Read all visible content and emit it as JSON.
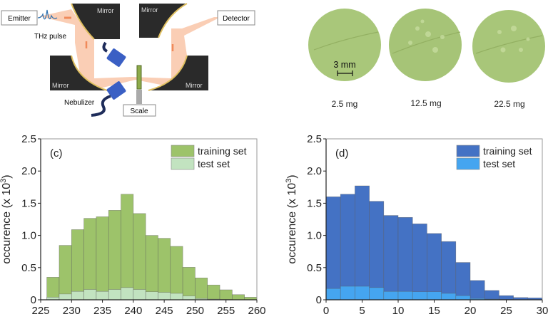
{
  "diagram": {
    "emitter": "Emitter",
    "detector": "Detector",
    "thz_pulse": "THz pulse",
    "mirror_labels": [
      "Mirror",
      "Mirror",
      "Mirror",
      "Mirror"
    ],
    "nebulizer": "Nebulizer",
    "scale": "Scale",
    "beam_color": "#f9c9ad",
    "mirror_color": "#2a2a2a",
    "nebulizer_color": "#3a5fc4"
  },
  "samples": {
    "scale_bar": "3 mm",
    "labels": [
      "2.5 mg",
      "12.5 mg",
      "22.5 mg"
    ],
    "leaf_color": "#a9c77a"
  },
  "chart_data": [
    {
      "type": "bar",
      "panel_label": "(c)",
      "ylabel": "occurence (x 10",
      "ylabel_sup": "3",
      "ylabel_close": ")",
      "xlim": [
        225,
        260
      ],
      "ylim": [
        0,
        2.5
      ],
      "xticks": [
        "225",
        "230",
        "235",
        "240",
        "245",
        "250",
        "255",
        "260"
      ],
      "yticks": [
        "0",
        "0.5",
        "1.0",
        "1.5",
        "2.0",
        "2.5"
      ],
      "bin_edges": [
        226,
        228,
        230,
        232,
        234,
        236,
        238,
        240,
        242,
        244,
        246,
        248,
        250,
        252,
        254,
        256,
        258,
        260
      ],
      "legend_position": "top-right",
      "series": [
        {
          "name": "training set",
          "color": "#9dc36a",
          "values": [
            0.35,
            0.845,
            1.09,
            1.265,
            1.29,
            1.39,
            1.64,
            1.34,
            1.0,
            0.955,
            0.83,
            0.505,
            0.34,
            0.23,
            0.155,
            0.08,
            0.04
          ]
        },
        {
          "name": "test set",
          "color": "#c2e3c0",
          "values": [
            0.04,
            0.09,
            0.13,
            0.16,
            0.13,
            0.16,
            0.19,
            0.16,
            0.125,
            0.115,
            0.1,
            0.06,
            0.02,
            0.01,
            0.005,
            0,
            0
          ]
        }
      ]
    },
    {
      "type": "bar",
      "panel_label": "(d)",
      "ylabel": "occurence (x 10",
      "ylabel_sup": "3",
      "ylabel_close": ")",
      "xlim": [
        0,
        30
      ],
      "ylim": [
        0,
        2.5
      ],
      "xticks": [
        "0",
        "5",
        "10",
        "15",
        "20",
        "25",
        "30"
      ],
      "yticks": [
        "0",
        "0.5",
        "1.0",
        "1.5",
        "2.0",
        "2.5"
      ],
      "bin_edges": [
        0,
        2,
        4,
        6,
        8,
        10,
        12,
        14,
        16,
        18,
        20,
        22,
        24,
        26,
        28,
        30
      ],
      "legend_position": "top-right",
      "series": [
        {
          "name": "training set",
          "color": "#4472c4",
          "values": [
            1.6,
            1.64,
            1.77,
            1.53,
            1.31,
            1.28,
            1.18,
            1.03,
            0.905,
            0.58,
            0.3,
            0.145,
            0.065,
            0.035,
            0.03
          ]
        },
        {
          "name": "test set",
          "color": "#45a5f0",
          "values": [
            0.175,
            0.21,
            0.21,
            0.19,
            0.13,
            0.13,
            0.125,
            0.125,
            0.1,
            0.065,
            0.02,
            0.01,
            0.005,
            0,
            0
          ]
        }
      ]
    }
  ]
}
